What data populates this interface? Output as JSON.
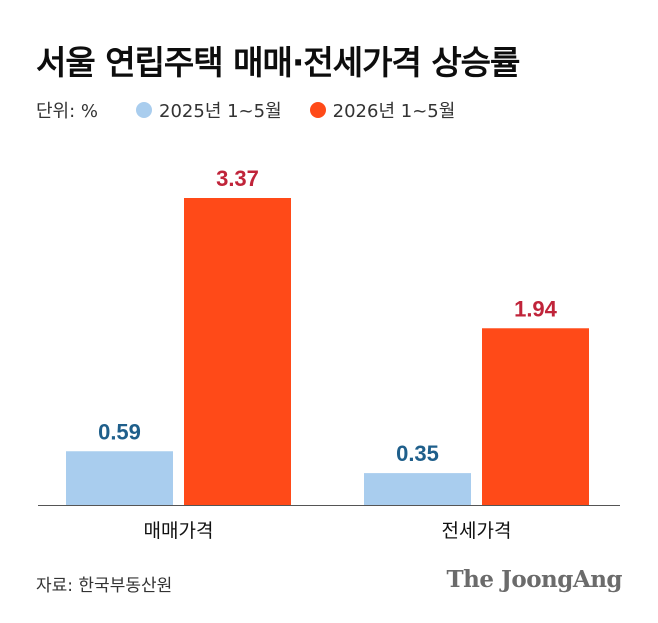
{
  "title": "서울 연립주택 매매·전세가격 상승률",
  "legend": {
    "unit": "단위: %",
    "items": [
      {
        "label": "2025년 1~5월",
        "color": "#a9cdee"
      },
      {
        "label": "2026년 1~5월",
        "color": "#ff4a18"
      }
    ]
  },
  "colors": {
    "series_2025_label": "#1f5f8b",
    "series_2026_label": "#c0243a",
    "axis": "#555555"
  },
  "chart_data": {
    "type": "bar",
    "title": "서울 연립주택 매매·전세가격 상승률",
    "categories": [
      "매매가격",
      "전세가격"
    ],
    "series": [
      {
        "name": "2025년 1~5월",
        "values": [
          0.59,
          0.35
        ]
      },
      {
        "name": "2026년 1~5월",
        "values": [
          3.37,
          1.94
        ]
      }
    ],
    "unit": "%",
    "ylim": [
      0,
      3.37
    ],
    "grid": false,
    "legend_position": "top-left"
  },
  "source": "자료: 한국부동산원",
  "brand": "The JoongAng"
}
